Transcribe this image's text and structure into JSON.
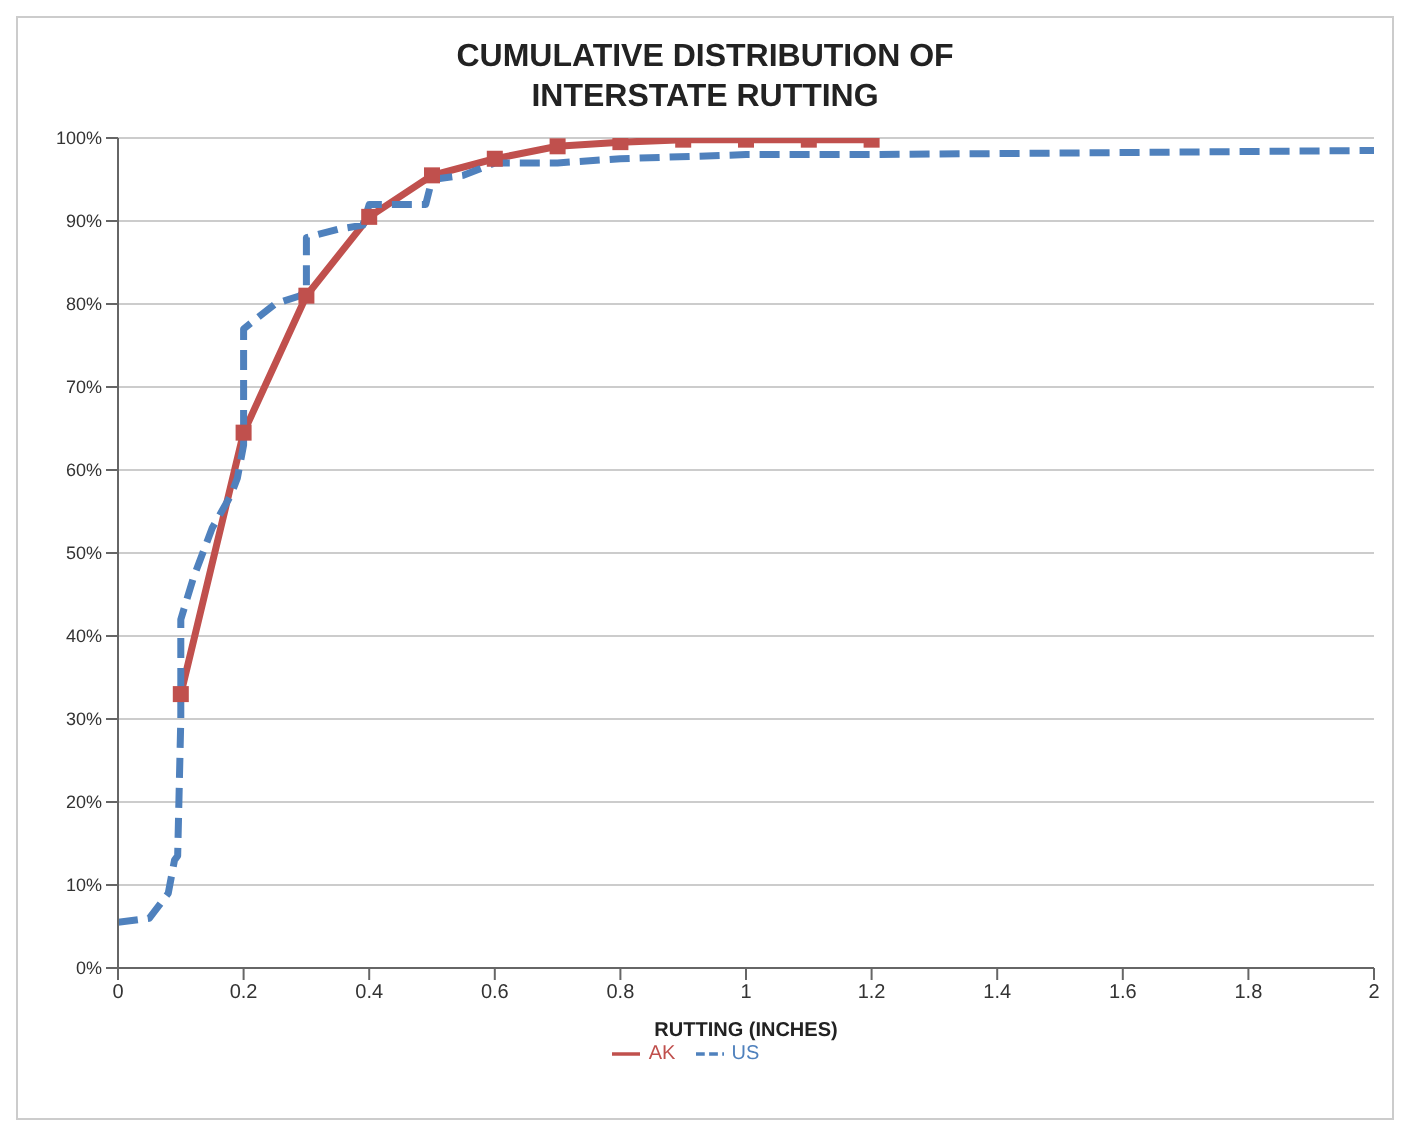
{
  "chart_data": {
    "type": "line",
    "title": "CUMULATIVE DISTRIBUTION OF INTERSTATE RUTTING",
    "xlabel": "RUTTING (INCHES)",
    "xlim": [
      0,
      2
    ],
    "xticks": [
      0,
      0.2,
      0.4,
      0.6,
      0.8,
      1,
      1.2,
      1.4,
      1.6,
      1.8,
      2
    ],
    "ylim": [
      0,
      100
    ],
    "yticks": [
      {
        "value": 0,
        "label": "0%"
      },
      {
        "value": 10,
        "label": "10%"
      },
      {
        "value": 20,
        "label": "20%"
      },
      {
        "value": 30,
        "label": "30%"
      },
      {
        "value": 40,
        "label": "40%"
      },
      {
        "value": 50,
        "label": "50%"
      },
      {
        "value": 60,
        "label": "60%"
      },
      {
        "value": 70,
        "label": "70%"
      },
      {
        "value": 80,
        "label": "80%"
      },
      {
        "value": 90,
        "label": "90%"
      },
      {
        "value": 100,
        "label": "100%"
      }
    ],
    "grid": "y",
    "legend": "bottom",
    "series": [
      {
        "name": "AK",
        "color": "#c0504d",
        "marker": "square",
        "line_style": "solid",
        "x": [
          0.1,
          0.2,
          0.3,
          0.4,
          0.5,
          0.6,
          0.7,
          0.8,
          0.9,
          1.0,
          1.1,
          1.2
        ],
        "values": [
          33,
          64.5,
          81,
          90.5,
          95.5,
          97.5,
          99,
          99.5,
          99.8,
          99.8,
          99.8,
          99.8
        ]
      },
      {
        "name": "US",
        "color": "#4f81bd",
        "marker": "none",
        "line_style": "dashed",
        "x": [
          0,
          0.05,
          0.08,
          0.09,
          0.095,
          0.1,
          0.1,
          0.12,
          0.15,
          0.18,
          0.19,
          0.2,
          0.2,
          0.25,
          0.29,
          0.3,
          0.3,
          0.35,
          0.39,
          0.4,
          0.45,
          0.49,
          0.5,
          0.55,
          0.6,
          0.7,
          0.8,
          1.0,
          1.2,
          2.0
        ],
        "values": [
          5.5,
          6,
          9,
          13,
          13.5,
          30,
          42,
          47,
          53,
          57,
          59,
          63,
          77,
          80,
          81,
          82,
          88,
          89,
          89.5,
          92,
          92,
          92,
          95,
          95.5,
          97,
          97,
          97.5,
          98,
          98,
          98.5
        ]
      }
    ]
  }
}
